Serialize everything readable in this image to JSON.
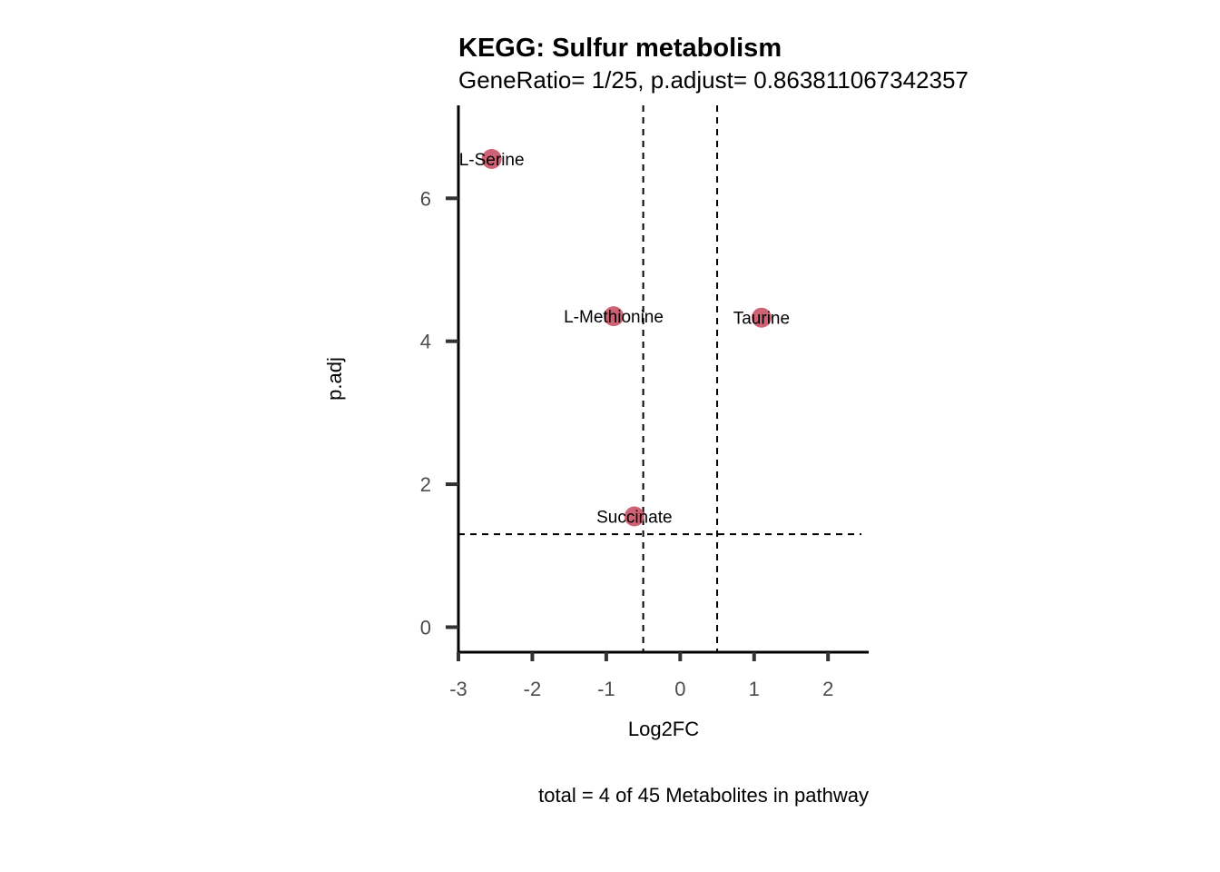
{
  "chart_data": {
    "type": "scatter",
    "title": "KEGG: Sulfur metabolism",
    "subtitle": "GeneRatio= 1/25, p.adjust= 0.863811067342357",
    "xlabel": "Log2FC",
    "ylabel": "p.adj",
    "caption": "total = 4 of 45 Metabolites in pathway",
    "xlim": [
      -3,
      2.55
    ],
    "ylim": [
      -0.35,
      7.3
    ],
    "x_ticks": [
      -3,
      -2,
      -1,
      0,
      1,
      2
    ],
    "x_tick_labels": [
      "-3",
      "-2",
      "-1",
      "0",
      "1",
      "2"
    ],
    "y_ticks": [
      0,
      2,
      4,
      6
    ],
    "y_tick_labels": [
      "0",
      "2",
      "4",
      "6"
    ],
    "vlines": [
      -0.5,
      0.5
    ],
    "hline": 1.3,
    "grid": false,
    "legend": "none",
    "point_color": "#cc5a6e",
    "points": [
      {
        "label": "L-Serine",
        "x": -2.55,
        "y": 6.55
      },
      {
        "label": "L-Methionine",
        "x": -0.9,
        "y": 4.35
      },
      {
        "label": "Taurine",
        "x": 1.1,
        "y": 4.33
      },
      {
        "label": "Succinate",
        "x": -0.62,
        "y": 1.55
      }
    ]
  }
}
